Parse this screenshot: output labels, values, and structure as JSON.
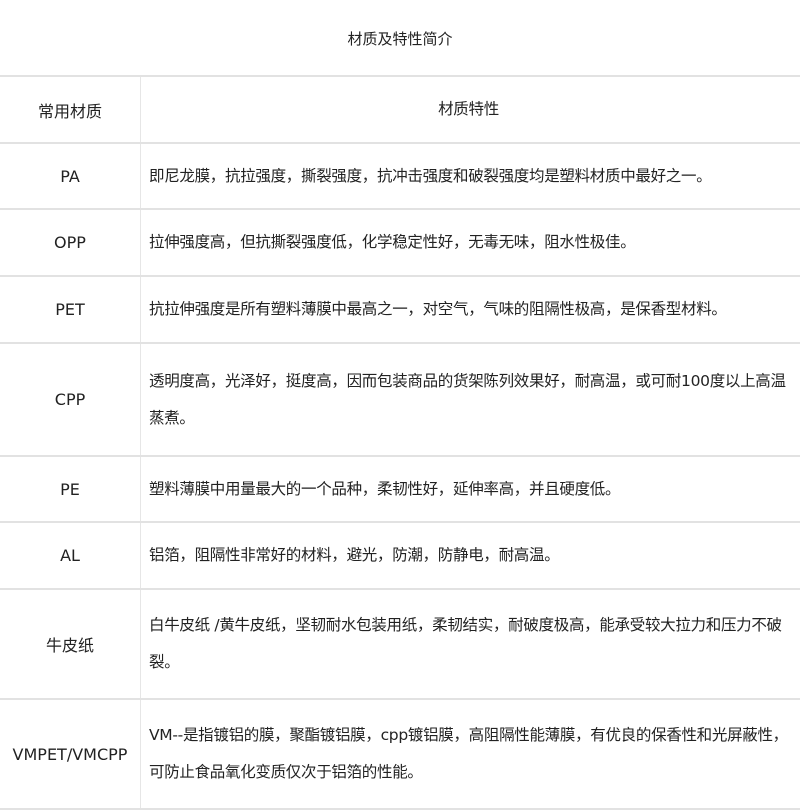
{
  "title": "材质及特性简介",
  "headers": {
    "material": "常用材质",
    "properties": "材质特性"
  },
  "rows": [
    {
      "material": "PA",
      "properties": "即尼龙膜，抗拉强度，撕裂强度，抗冲击强度和破裂强度均是塑料材质中最好之一。"
    },
    {
      "material": "OPP",
      "properties": "拉伸强度高，但抗撕裂强度低，化学稳定性好，无毒无味，阻水性极佳。"
    },
    {
      "material": "PET",
      "properties": "抗拉伸强度是所有塑料薄膜中最高之一，对空气，气味的阻隔性极高，是保香型材料。"
    },
    {
      "material": "CPP",
      "properties": "透明度高，光泽好，挺度高，因而包装商品的货架陈列效果好，耐高温，或可耐100度以上高温蒸煮。"
    },
    {
      "material": "PE",
      "properties": "塑料薄膜中用量最大的一个品种，柔韧性好，延伸率高，并且硬度低。"
    },
    {
      "material": "AL",
      "properties": "铝箔，阻隔性非常好的材料，避光，防潮，防静电，耐高温。"
    },
    {
      "material": "牛皮纸",
      "properties": "白牛皮纸 /黄牛皮纸，坚韧耐水包装用纸，柔韧结实，耐破度极高，能承受较大拉力和压力不破裂。"
    },
    {
      "material": "VMPET/VMCPP",
      "properties": "VM--是指镀铝的膜，聚酯镀铝膜，cpp镀铝膜，高阻隔性能薄膜，有优良的保香性和光屏蔽性，可防止食品氧化变质仅次于铝箔的性能。"
    }
  ]
}
